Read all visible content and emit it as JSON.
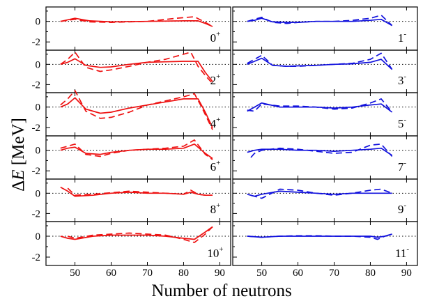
{
  "figure": {
    "ylabel_symbol": "Δ",
    "ylabel_var": "E",
    "ylabel_unit": " [MeV]",
    "xlabel": "Number of neutrons",
    "colors": {
      "even": "#ee1111",
      "odd": "#1111dd",
      "ref": "#000000"
    }
  },
  "chart_data": [
    {
      "type": "line",
      "label": "0",
      "parity": "+",
      "column": 0,
      "row": 0,
      "color": "#ee1111",
      "xlim": [
        42,
        93
      ],
      "ylim": [
        -2.8,
        1.4
      ],
      "yticks": [
        -2,
        0
      ],
      "xticks": [
        50,
        60,
        70,
        80,
        90
      ],
      "series": [
        {
          "style": "solid",
          "x": [
            46,
            50,
            54,
            60,
            70,
            80,
            84,
            86,
            88
          ],
          "y": [
            0.0,
            0.3,
            0.05,
            -0.05,
            0.0,
            0.05,
            0.05,
            -0.2,
            -0.5
          ]
        },
        {
          "style": "dashed",
          "x": [
            46,
            50,
            54,
            60,
            70,
            78,
            83,
            86,
            88
          ],
          "y": [
            0.0,
            0.2,
            -0.05,
            -0.1,
            0.0,
            0.3,
            0.45,
            -0.1,
            -0.5
          ]
        }
      ]
    },
    {
      "type": "line",
      "label": "2",
      "parity": "+",
      "column": 0,
      "row": 1,
      "color": "#ee1111",
      "xlim": [
        42,
        93
      ],
      "ylim": [
        -2.8,
        1.4
      ],
      "yticks": [
        -2,
        0
      ],
      "xticks": [
        50,
        60,
        70,
        80,
        90
      ],
      "series": [
        {
          "style": "solid",
          "x": [
            46,
            48,
            50,
            53,
            57,
            60,
            65,
            70,
            75,
            80,
            84,
            86,
            88
          ],
          "y": [
            0.0,
            0.2,
            0.55,
            -0.1,
            -0.3,
            -0.25,
            0.0,
            0.2,
            0.25,
            0.3,
            0.3,
            -0.8,
            -1.7
          ]
        },
        {
          "style": "dashed",
          "x": [
            46,
            48,
            50,
            53,
            57,
            60,
            65,
            70,
            75,
            80,
            82,
            84,
            86,
            88
          ],
          "y": [
            0.0,
            0.5,
            1.2,
            -0.3,
            -0.7,
            -0.55,
            -0.2,
            0.2,
            0.5,
            1.0,
            1.2,
            -0.2,
            -1.1,
            -1.9
          ]
        }
      ]
    },
    {
      "type": "line",
      "label": "4",
      "parity": "+",
      "column": 0,
      "row": 2,
      "color": "#ee1111",
      "xlim": [
        42,
        93
      ],
      "ylim": [
        -2.8,
        1.4
      ],
      "yticks": [
        -2,
        0
      ],
      "xticks": [
        50,
        60,
        70,
        80,
        90
      ],
      "series": [
        {
          "style": "solid",
          "x": [
            46,
            48,
            50,
            53,
            57,
            60,
            65,
            70,
            75,
            80,
            84,
            86,
            88
          ],
          "y": [
            0.0,
            0.3,
            0.9,
            -0.2,
            -0.6,
            -0.5,
            -0.1,
            0.2,
            0.5,
            0.8,
            0.8,
            -0.5,
            -2.0
          ]
        },
        {
          "style": "dashed",
          "x": [
            46,
            48,
            50,
            53,
            57,
            60,
            65,
            70,
            75,
            80,
            83,
            85,
            88
          ],
          "y": [
            0.2,
            0.8,
            1.6,
            -0.4,
            -1.1,
            -1.0,
            -0.5,
            0.2,
            0.6,
            1.0,
            1.3,
            0.0,
            -2.2
          ]
        }
      ]
    },
    {
      "type": "line",
      "label": "6",
      "parity": "+",
      "column": 0,
      "row": 3,
      "color": "#ee1111",
      "xlim": [
        42,
        93
      ],
      "ylim": [
        -2.8,
        1.4
      ],
      "yticks": [
        -2,
        0
      ],
      "xticks": [
        50,
        60,
        70,
        80,
        90
      ],
      "series": [
        {
          "style": "solid",
          "x": [
            46,
            48,
            50,
            53,
            57,
            60,
            65,
            70,
            75,
            80,
            83,
            86,
            88
          ],
          "y": [
            0.0,
            0.2,
            0.3,
            -0.3,
            -0.4,
            -0.2,
            0.0,
            0.1,
            0.1,
            0.2,
            0.6,
            -0.3,
            -0.8
          ]
        },
        {
          "style": "dashed",
          "x": [
            46,
            48,
            50,
            53,
            57,
            60,
            65,
            70,
            75,
            80,
            83,
            86,
            88
          ],
          "y": [
            0.2,
            0.4,
            0.6,
            -0.4,
            -0.6,
            -0.3,
            0.0,
            0.1,
            0.2,
            0.4,
            1.0,
            -0.4,
            -0.9
          ]
        }
      ]
    },
    {
      "type": "line",
      "label": "8",
      "parity": "+",
      "column": 0,
      "row": 4,
      "color": "#ee1111",
      "xlim": [
        42,
        93
      ],
      "ylim": [
        -2.8,
        1.4
      ],
      "yticks": [
        -2,
        0
      ],
      "xticks": [
        50,
        60,
        70,
        80,
        90
      ],
      "series": [
        {
          "style": "solid",
          "x": [
            46,
            48,
            50,
            55,
            60,
            65,
            70,
            75,
            80,
            82,
            84,
            86,
            88
          ],
          "y": [
            0.6,
            0.2,
            -0.3,
            -0.2,
            0.0,
            0.1,
            0.0,
            0.0,
            -0.1,
            0.1,
            -0.1,
            -0.2,
            -0.2
          ]
        },
        {
          "style": "dashed",
          "x": [
            48,
            50,
            55,
            60,
            65,
            70,
            75,
            80,
            82,
            84,
            86,
            88
          ],
          "y": [
            0.5,
            -0.2,
            -0.1,
            0.05,
            0.2,
            0.1,
            0.0,
            -0.1,
            0.3,
            -0.1,
            -0.2,
            -0.2
          ]
        }
      ]
    },
    {
      "type": "line",
      "label": "10",
      "parity": "+",
      "column": 0,
      "row": 5,
      "color": "#ee1111",
      "xlim": [
        42,
        93
      ],
      "ylim": [
        -2.8,
        1.4
      ],
      "yticks": [
        -2,
        0
      ],
      "xticks": [
        50,
        60,
        70,
        80,
        90
      ],
      "series": [
        {
          "style": "solid",
          "x": [
            46,
            48,
            50,
            55,
            60,
            65,
            70,
            75,
            80,
            83,
            86,
            88
          ],
          "y": [
            0.0,
            -0.2,
            -0.3,
            0.0,
            0.1,
            0.1,
            0.1,
            0.0,
            -0.2,
            -0.3,
            0.4,
            0.9
          ]
        },
        {
          "style": "dashed",
          "x": [
            48,
            50,
            55,
            60,
            65,
            70,
            75,
            80,
            83,
            86,
            88
          ],
          "y": [
            0.0,
            -0.2,
            0.1,
            0.2,
            0.3,
            0.2,
            0.1,
            -0.3,
            -0.6,
            0.2,
            0.9
          ]
        }
      ]
    },
    {
      "type": "line",
      "label": "1",
      "parity": "-",
      "column": 1,
      "row": 0,
      "color": "#1111dd",
      "xlim": [
        42,
        93
      ],
      "ylim": [
        -2.8,
        1.4
      ],
      "yticks": [
        -2,
        0
      ],
      "xticks": [
        50,
        60,
        70,
        80,
        90
      ],
      "series": [
        {
          "style": "solid",
          "x": [
            46,
            48,
            50,
            53,
            57,
            60,
            65,
            70,
            75,
            80,
            83,
            86
          ],
          "y": [
            0.0,
            0.1,
            0.3,
            -0.05,
            -0.1,
            -0.1,
            0.0,
            0.0,
            0.0,
            0.1,
            0.2,
            -0.4
          ]
        },
        {
          "style": "dashed",
          "x": [
            46,
            48,
            50,
            53,
            57,
            60,
            65,
            70,
            75,
            80,
            83,
            86
          ],
          "y": [
            0.0,
            0.2,
            0.4,
            -0.1,
            -0.2,
            -0.1,
            0.0,
            0.0,
            0.1,
            0.3,
            0.6,
            -0.4
          ]
        }
      ]
    },
    {
      "type": "line",
      "label": "3",
      "parity": "-",
      "column": 1,
      "row": 1,
      "color": "#1111dd",
      "xlim": [
        42,
        93
      ],
      "ylim": [
        -2.8,
        1.4
      ],
      "yticks": [
        -2,
        0
      ],
      "xticks": [
        50,
        60,
        70,
        80,
        90
      ],
      "series": [
        {
          "style": "solid",
          "x": [
            46,
            48,
            50,
            53,
            57,
            60,
            65,
            70,
            75,
            80,
            83,
            86
          ],
          "y": [
            0.0,
            0.3,
            0.6,
            -0.1,
            -0.2,
            -0.15,
            -0.1,
            0.0,
            0.05,
            0.2,
            0.5,
            -0.5
          ]
        },
        {
          "style": "dashed",
          "x": [
            46,
            48,
            50,
            53,
            57,
            60,
            65,
            70,
            75,
            80,
            83,
            86
          ],
          "y": [
            0.1,
            0.5,
            0.9,
            -0.1,
            -0.2,
            -0.2,
            -0.1,
            0.0,
            0.1,
            0.5,
            1.1,
            -0.5
          ]
        }
      ]
    },
    {
      "type": "line",
      "label": "5",
      "parity": "-",
      "column": 1,
      "row": 2,
      "color": "#1111dd",
      "xlim": [
        42,
        93
      ],
      "ylim": [
        -2.8,
        1.4
      ],
      "yticks": [
        -2,
        0
      ],
      "xticks": [
        50,
        60,
        70,
        80,
        90
      ],
      "series": [
        {
          "style": "solid",
          "x": [
            46,
            48,
            50,
            55,
            60,
            65,
            70,
            75,
            80,
            83,
            86
          ],
          "y": [
            -0.4,
            0.0,
            0.4,
            0.0,
            0.0,
            0.0,
            -0.1,
            0.0,
            0.2,
            0.3,
            -0.5
          ]
        },
        {
          "style": "dashed",
          "x": [
            46,
            48,
            50,
            55,
            60,
            65,
            70,
            75,
            80,
            83,
            86
          ],
          "y": [
            -0.3,
            -0.4,
            0.3,
            0.1,
            0.1,
            0.0,
            -0.2,
            -0.1,
            0.4,
            0.8,
            -0.5
          ]
        }
      ]
    },
    {
      "type": "line",
      "label": "7",
      "parity": "-",
      "column": 1,
      "row": 3,
      "color": "#1111dd",
      "xlim": [
        42,
        93
      ],
      "ylim": [
        -2.8,
        1.4
      ],
      "yticks": [
        -2,
        0
      ],
      "xticks": [
        50,
        60,
        70,
        80,
        90
      ],
      "series": [
        {
          "style": "solid",
          "x": [
            46,
            48,
            50,
            55,
            60,
            65,
            70,
            75,
            80,
            83,
            86
          ],
          "y": [
            -0.2,
            0.0,
            0.1,
            0.1,
            0.0,
            0.0,
            -0.1,
            0.0,
            0.1,
            0.2,
            -0.5
          ]
        },
        {
          "style": "dashed",
          "x": [
            47,
            48,
            50,
            55,
            60,
            65,
            70,
            75,
            80,
            83,
            86
          ],
          "y": [
            -0.7,
            -0.3,
            0.0,
            0.2,
            0.1,
            -0.1,
            -0.3,
            -0.2,
            0.5,
            0.6,
            -0.6
          ]
        }
      ]
    },
    {
      "type": "line",
      "label": "9",
      "parity": "-",
      "column": 1,
      "row": 4,
      "color": "#1111dd",
      "xlim": [
        42,
        93
      ],
      "ylim": [
        -2.8,
        1.4
      ],
      "yticks": [
        -2,
        0
      ],
      "xticks": [
        50,
        60,
        70,
        80,
        90
      ],
      "series": [
        {
          "style": "solid",
          "x": [
            46,
            48,
            50,
            55,
            60,
            65,
            70,
            75,
            80,
            86
          ],
          "y": [
            -0.1,
            -0.3,
            -0.1,
            0.2,
            0.1,
            0.0,
            -0.1,
            0.0,
            0.0,
            0.0
          ]
        },
        {
          "style": "dashed",
          "x": [
            47,
            50,
            55,
            60,
            65,
            70,
            75,
            80,
            83,
            86
          ],
          "y": [
            -0.2,
            -0.5,
            0.4,
            0.3,
            0.0,
            -0.2,
            0.0,
            0.3,
            0.4,
            0.0
          ]
        }
      ]
    },
    {
      "type": "line",
      "label": "11",
      "parity": "-",
      "column": 1,
      "row": 5,
      "color": "#1111dd",
      "xlim": [
        42,
        93
      ],
      "ylim": [
        -2.8,
        1.4
      ],
      "yticks": [
        -2,
        0
      ],
      "xticks": [
        50,
        60,
        70,
        80,
        90
      ],
      "series": [
        {
          "style": "solid",
          "x": [
            46,
            50,
            55,
            60,
            65,
            70,
            75,
            80,
            82,
            84,
            86
          ],
          "y": [
            0.0,
            -0.1,
            0.0,
            0.0,
            0.0,
            0.0,
            0.0,
            0.0,
            -0.1,
            0.0,
            0.2
          ]
        },
        {
          "style": "dashed",
          "x": [
            46,
            50,
            55,
            60,
            65,
            70,
            75,
            80,
            82,
            84,
            86
          ],
          "y": [
            0.0,
            -0.1,
            0.0,
            0.05,
            0.05,
            0.0,
            0.0,
            -0.1,
            -0.3,
            0.0,
            0.2
          ]
        }
      ]
    }
  ]
}
